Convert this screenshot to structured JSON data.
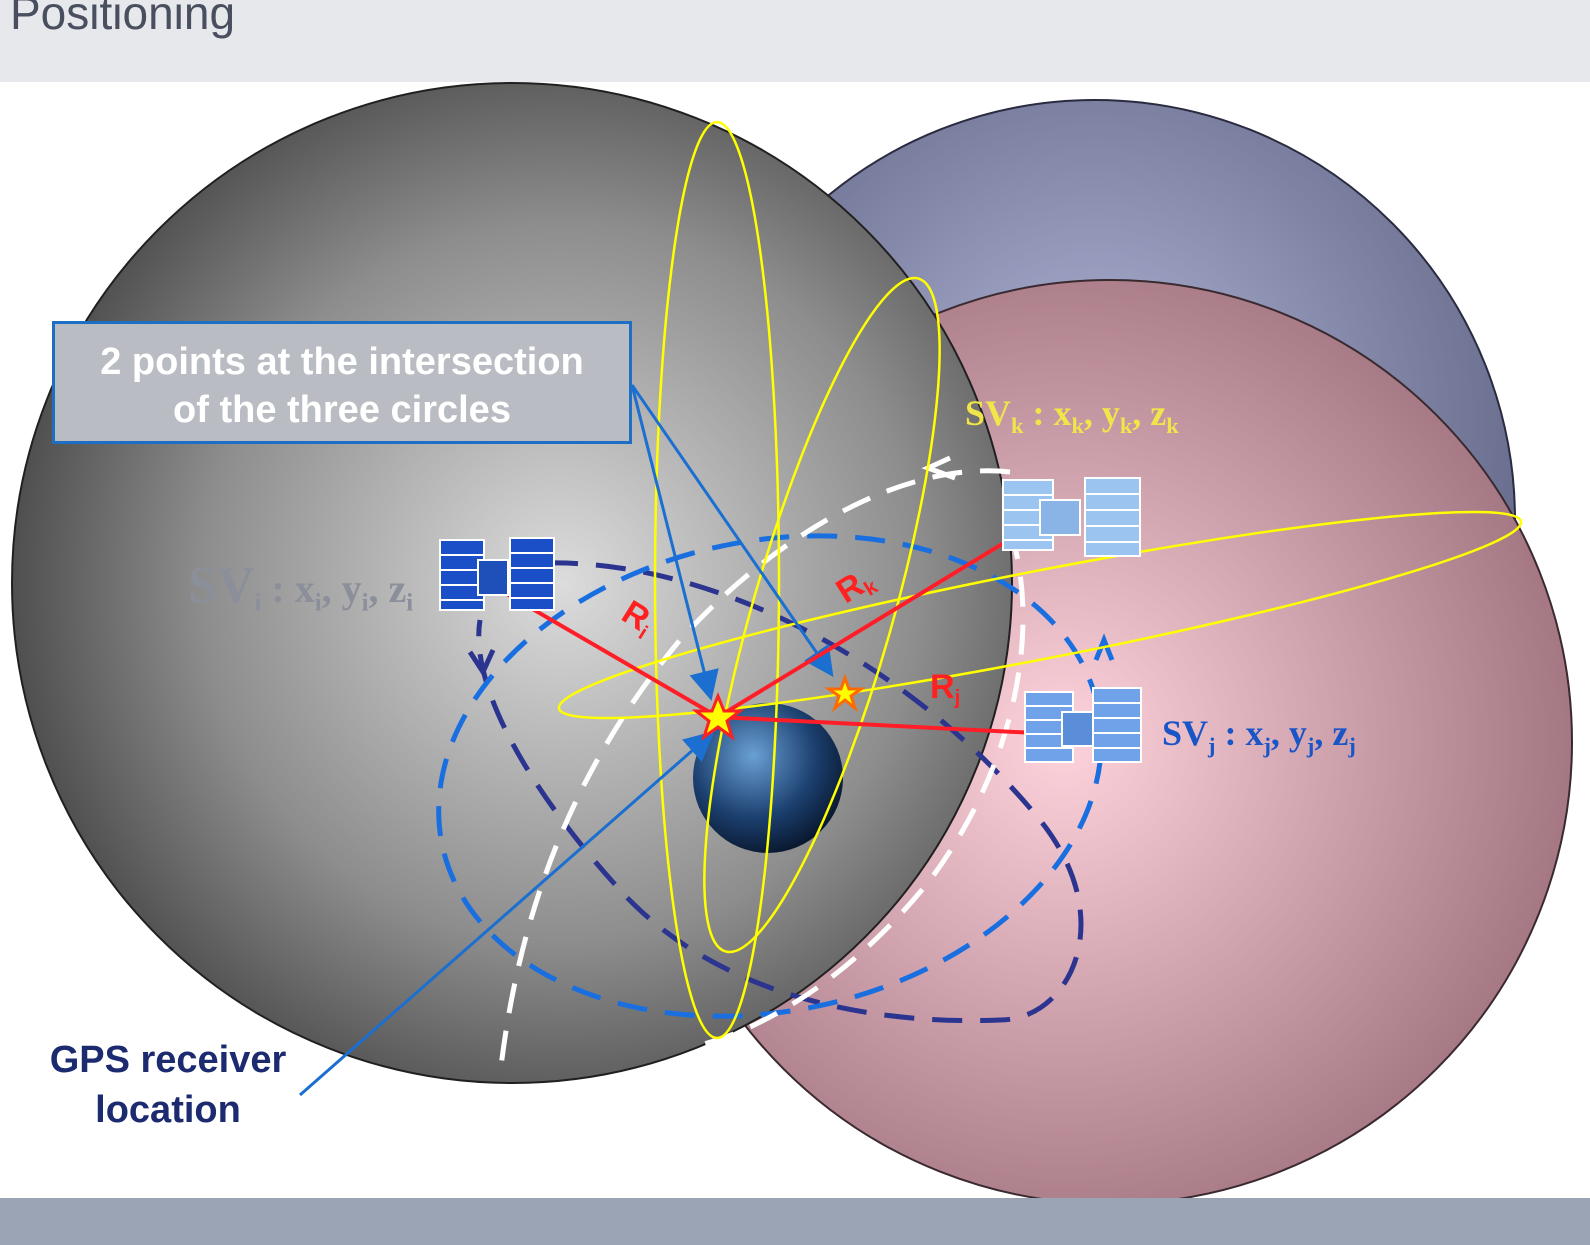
{
  "header": {
    "title": "Positioning"
  },
  "callout": {
    "line1": "2 points at the intersection",
    "line2": "of the three circles"
  },
  "receiver": {
    "line1": "GPS receiver",
    "line2": "location"
  },
  "satellites": {
    "i": {
      "name": "SV",
      "sub": "i",
      "x": "x",
      "y": "y",
      "z": "z",
      "range": "R",
      "range_sub": "i"
    },
    "j": {
      "name": "SV",
      "sub": "j",
      "x": "x",
      "y": "y",
      "z": "z",
      "range": "R",
      "range_sub": "j"
    },
    "k": {
      "name": "SV",
      "sub": "k",
      "x": "x",
      "y": "y",
      "z": "z",
      "range": "R",
      "range_sub": "k"
    }
  },
  "colors": {
    "sphere_i": "#5a5a5a",
    "sphere_k": "#6a6f8e",
    "sphere_j": "#e4a4b0",
    "orbit_yellow": "#ffff00",
    "range_red": "#ff1e28",
    "callout_border": "#1e6fc4",
    "satellite_blue": "#1a4fc8"
  }
}
